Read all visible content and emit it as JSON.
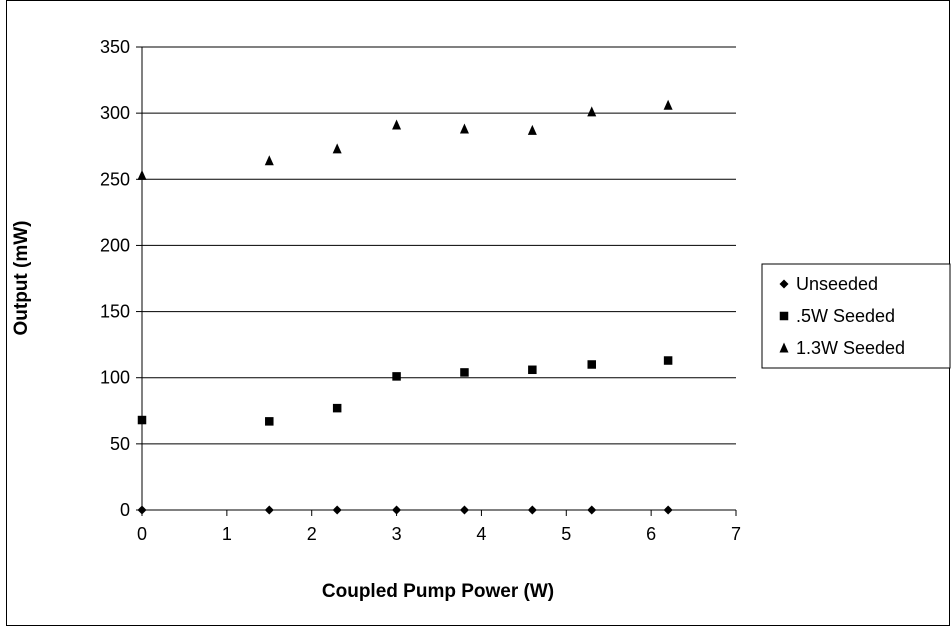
{
  "chart_data": {
    "type": "scatter",
    "title": "",
    "xlabel": "Coupled Pump Power (W)",
    "ylabel": "Output (mW)",
    "xlim": [
      0,
      7
    ],
    "ylim": [
      0,
      350
    ],
    "xticks": [
      "0",
      "1",
      "2",
      "3",
      "4",
      "5",
      "6",
      "7"
    ],
    "yticks": [
      "0",
      "50",
      "100",
      "150",
      "200",
      "250",
      "300",
      "350"
    ],
    "grid": "horizontal",
    "legend_position": "right",
    "series": [
      {
        "name": "Unseeded",
        "marker": "diamond",
        "color": "#000000",
        "x": [
          0,
          1.5,
          2.3,
          3.0,
          3.8,
          4.6,
          5.3,
          6.2
        ],
        "y": [
          0,
          0,
          0,
          0,
          0,
          0,
          0,
          0
        ]
      },
      {
        "name": ".5W Seeded",
        "marker": "square",
        "color": "#000000",
        "x": [
          0,
          1.5,
          2.3,
          3.0,
          3.8,
          4.6,
          5.3,
          6.2
        ],
        "y": [
          68,
          67,
          77,
          101,
          104,
          106,
          110,
          113
        ]
      },
      {
        "name": "1.3W Seeded",
        "marker": "triangle",
        "color": "#000000",
        "x": [
          0,
          1.5,
          2.3,
          3.0,
          3.8,
          4.6,
          5.3,
          6.2
        ],
        "y": [
          253,
          264,
          273,
          291,
          288,
          287,
          301,
          306
        ]
      }
    ]
  }
}
